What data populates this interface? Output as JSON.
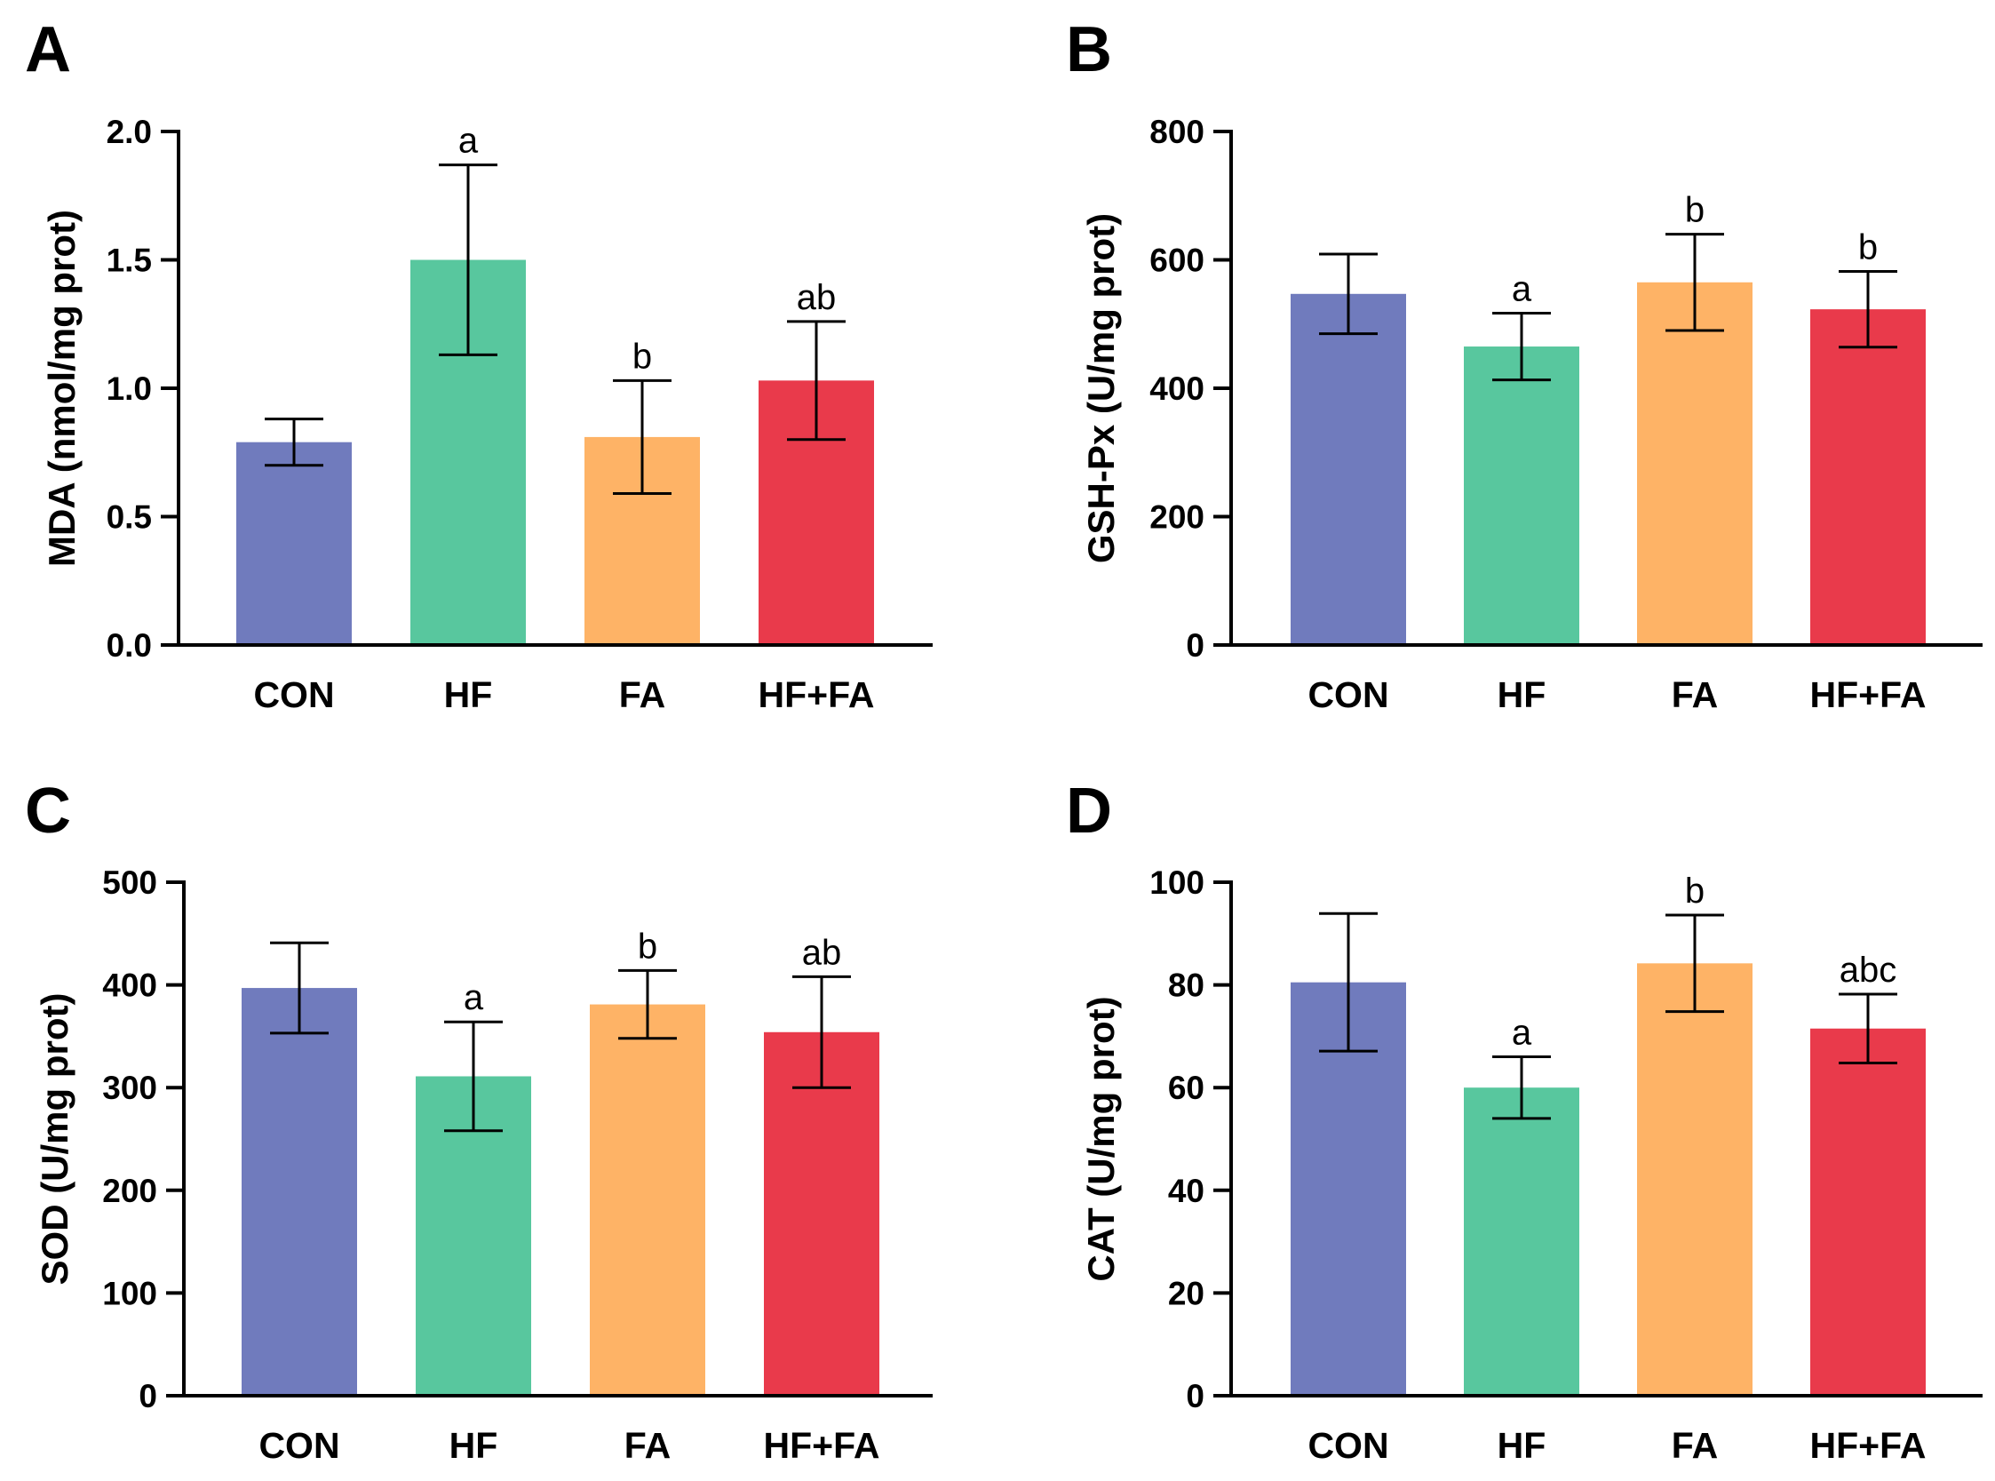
{
  "colors": {
    "CON": "#707bbd",
    "HF": "#58c79e",
    "FA": "#feb366",
    "HF+FA": "#e93a4b"
  },
  "chart_data": [
    {
      "type": "bar",
      "panel": "A",
      "categories": [
        "CON",
        "HF",
        "FA",
        "HF+FA"
      ],
      "values": [
        0.79,
        1.5,
        0.81,
        1.03
      ],
      "errors": [
        0.09,
        0.37,
        0.22,
        0.23
      ],
      "significance": [
        "",
        "a",
        "b",
        "ab"
      ],
      "ylabel": "MDA (nmol/mg prot)",
      "ylim": [
        0,
        2.0
      ],
      "yticks": [
        0.0,
        0.5,
        1.0,
        1.5,
        2.0
      ],
      "ytick_labels": [
        "0.0",
        "0.5",
        "1.0",
        "1.5",
        "2.0"
      ]
    },
    {
      "type": "bar",
      "panel": "B",
      "categories": [
        "CON",
        "HF",
        "FA",
        "HF+FA"
      ],
      "values": [
        547,
        465,
        565,
        523
      ],
      "errors": [
        62,
        52,
        75,
        59
      ],
      "significance": [
        "",
        "a",
        "b",
        "b"
      ],
      "ylabel": "GSH-Px (U/mg prot)",
      "ylim": [
        0,
        800
      ],
      "yticks": [
        0,
        200,
        400,
        600,
        800
      ],
      "ytick_labels": [
        "0",
        "200",
        "400",
        "600",
        "800"
      ]
    },
    {
      "type": "bar",
      "panel": "C",
      "categories": [
        "CON",
        "HF",
        "FA",
        "HF+FA"
      ],
      "values": [
        397,
        311,
        381,
        354
      ],
      "errors": [
        44,
        53,
        33,
        54
      ],
      "significance": [
        "",
        "a",
        "b",
        "ab"
      ],
      "ylabel": "SOD (U/mg prot)",
      "ylim": [
        0,
        500
      ],
      "yticks": [
        0,
        100,
        200,
        300,
        400,
        500
      ],
      "ytick_labels": [
        "0",
        "100",
        "200",
        "300",
        "400",
        "500"
      ]
    },
    {
      "type": "bar",
      "panel": "D",
      "categories": [
        "CON",
        "HF",
        "FA",
        "HF+FA"
      ],
      "values": [
        80.5,
        60,
        84.2,
        71.5
      ],
      "errors": [
        13.4,
        6,
        9.4,
        6.7
      ],
      "significance": [
        "",
        "a",
        "b",
        "abc"
      ],
      "ylabel": "CAT (U/mg prot)",
      "ylim": [
        0,
        100
      ],
      "yticks": [
        0,
        20,
        40,
        60,
        80,
        100
      ],
      "ytick_labels": [
        "0",
        "20",
        "40",
        "60",
        "80",
        "100"
      ]
    }
  ]
}
